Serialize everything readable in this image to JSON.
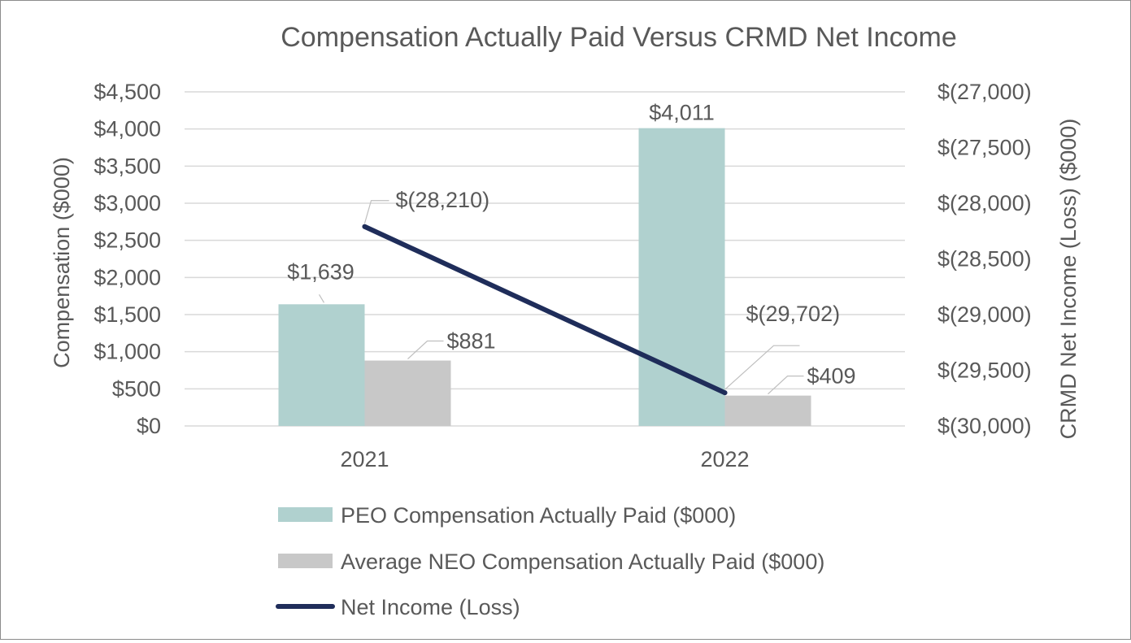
{
  "chart_data": {
    "type": "bar",
    "title": "Compensation Actually Paid Versus CRMD Net Income",
    "categories": [
      "2021",
      "2022"
    ],
    "xlabel": "",
    "ylabel": "Compensation ($000)",
    "y2label": "CRMD Net Income (Loss) ($000)",
    "ylim": [
      0,
      4500
    ],
    "y2lim": [
      -30000,
      -27000
    ],
    "yticks": [
      "$0",
      "$500",
      "$1,000",
      "$1,500",
      "$2,000",
      "$2,500",
      "$3,000",
      "$3,500",
      "$4,000",
      "$4,500"
    ],
    "y2ticks": [
      "$(30,000)",
      "$(29,500)",
      "$(29,000)",
      "$(28,500)",
      "$(28,000)",
      "$(27,500)",
      "$(27,000)"
    ],
    "grid": true,
    "legend_position": "bottom",
    "series": [
      {
        "name": "PEO Compensation Actually Paid ($000)",
        "kind": "bar",
        "axis": "left",
        "color": "#b0d1cf",
        "values": [
          1639,
          4011
        ],
        "labels": [
          "$1,639",
          "$4,011"
        ]
      },
      {
        "name": "Average NEO Compensation Actually Paid ($000)",
        "kind": "bar",
        "axis": "left",
        "color": "#c8c8c8",
        "values": [
          881,
          409
        ],
        "labels": [
          "$881",
          "$409"
        ]
      },
      {
        "name": "Net Income (Loss)",
        "kind": "line",
        "axis": "right",
        "color": "#1f2d5a",
        "values": [
          -28210,
          -29702
        ],
        "labels": [
          "$(28,210)",
          "$(29,702)"
        ]
      }
    ]
  }
}
